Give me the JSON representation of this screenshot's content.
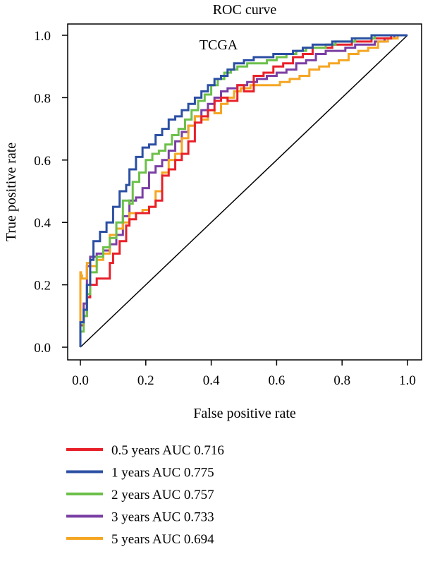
{
  "chart_data": {
    "type": "line",
    "title": "ROC curve",
    "annotation": "TCGA",
    "xlabel": "False positive rate",
    "ylabel": "True positive rate",
    "xlim": [
      0,
      1
    ],
    "ylim": [
      0,
      1
    ],
    "x_ticks": [
      "0.0",
      "0.2",
      "0.4",
      "0.6",
      "0.8",
      "1.0"
    ],
    "y_ticks": [
      "0.0",
      "0.2",
      "0.4",
      "0.6",
      "0.8",
      "1.0"
    ],
    "grid": false,
    "legend_position": "below plot",
    "reference_line": {
      "x": [
        0,
        1
      ],
      "y": [
        0,
        1
      ],
      "color": "#000000"
    },
    "series": [
      {
        "name": "0.5 years AUC 0.716",
        "color": "#e8202a",
        "x": [
          0,
          0.01,
          0.02,
          0.03,
          0.05,
          0.07,
          0.09,
          0.1,
          0.12,
          0.14,
          0.15,
          0.17,
          0.19,
          0.21,
          0.23,
          0.25,
          0.27,
          0.29,
          0.31,
          0.33,
          0.35,
          0.37,
          0.39,
          0.41,
          0.43,
          0.45,
          0.48,
          0.5,
          0.53,
          0.56,
          0.59,
          0.62,
          0.65,
          0.68,
          0.71,
          0.74,
          0.77,
          0.8,
          0.83,
          0.86,
          0.89,
          0.92,
          0.95,
          0.98,
          1.0
        ],
        "y": [
          0,
          0.07,
          0.1,
          0.16,
          0.2,
          0.22,
          0.22,
          0.27,
          0.3,
          0.34,
          0.39,
          0.41,
          0.43,
          0.43,
          0.45,
          0.47,
          0.55,
          0.57,
          0.6,
          0.62,
          0.66,
          0.72,
          0.74,
          0.76,
          0.79,
          0.8,
          0.79,
          0.84,
          0.82,
          0.87,
          0.88,
          0.9,
          0.91,
          0.93,
          0.94,
          0.96,
          0.96,
          0.97,
          0.97,
          0.98,
          0.98,
          0.99,
          0.99,
          1.0,
          1.0
        ]
      },
      {
        "name": "1 years AUC 0.775",
        "color": "#2b4fa3",
        "x": [
          0,
          0.01,
          0.02,
          0.03,
          0.04,
          0.06,
          0.08,
          0.09,
          0.1,
          0.12,
          0.14,
          0.15,
          0.17,
          0.19,
          0.21,
          0.23,
          0.25,
          0.27,
          0.29,
          0.31,
          0.33,
          0.35,
          0.37,
          0.39,
          0.41,
          0.43,
          0.45,
          0.47,
          0.5,
          0.53,
          0.56,
          0.59,
          0.62,
          0.65,
          0.68,
          0.71,
          0.74,
          0.77,
          0.8,
          0.83,
          0.86,
          0.89,
          0.92,
          0.95,
          1.0
        ],
        "y": [
          0,
          0.08,
          0.12,
          0.2,
          0.28,
          0.34,
          0.37,
          0.4,
          0.4,
          0.45,
          0.5,
          0.52,
          0.57,
          0.61,
          0.64,
          0.65,
          0.68,
          0.7,
          0.73,
          0.74,
          0.76,
          0.78,
          0.8,
          0.82,
          0.84,
          0.86,
          0.87,
          0.89,
          0.91,
          0.92,
          0.93,
          0.93,
          0.94,
          0.94,
          0.95,
          0.96,
          0.97,
          0.97,
          0.98,
          0.98,
          0.99,
          0.99,
          1.0,
          1.0,
          1.0
        ]
      },
      {
        "name": "2 years AUC 0.757",
        "color": "#6cc04a",
        "x": [
          0,
          0.01,
          0.02,
          0.03,
          0.05,
          0.07,
          0.09,
          0.11,
          0.13,
          0.15,
          0.16,
          0.18,
          0.2,
          0.22,
          0.24,
          0.26,
          0.28,
          0.3,
          0.32,
          0.34,
          0.36,
          0.38,
          0.4,
          0.42,
          0.44,
          0.46,
          0.48,
          0.51,
          0.54,
          0.57,
          0.6,
          0.63,
          0.66,
          0.69,
          0.72,
          0.75,
          0.78,
          0.81,
          0.84,
          0.87,
          0.9,
          0.93,
          0.96,
          1.0
        ],
        "y": [
          0,
          0.05,
          0.1,
          0.17,
          0.24,
          0.29,
          0.32,
          0.35,
          0.4,
          0.47,
          0.46,
          0.53,
          0.56,
          0.6,
          0.62,
          0.63,
          0.65,
          0.68,
          0.7,
          0.73,
          0.76,
          0.79,
          0.81,
          0.84,
          0.86,
          0.88,
          0.89,
          0.9,
          0.91,
          0.91,
          0.92,
          0.93,
          0.94,
          0.95,
          0.96,
          0.96,
          0.97,
          0.98,
          0.98,
          0.99,
          0.99,
          1.0,
          1.0,
          1.0
        ]
      },
      {
        "name": "3 years AUC 0.733",
        "color": "#7a3fa3",
        "x": [
          0,
          0.01,
          0.02,
          0.03,
          0.05,
          0.07,
          0.09,
          0.11,
          0.13,
          0.15,
          0.17,
          0.19,
          0.21,
          0.23,
          0.25,
          0.27,
          0.29,
          0.31,
          0.33,
          0.35,
          0.37,
          0.39,
          0.41,
          0.43,
          0.45,
          0.48,
          0.51,
          0.54,
          0.57,
          0.6,
          0.63,
          0.66,
          0.69,
          0.72,
          0.75,
          0.78,
          0.81,
          0.84,
          0.87,
          0.9,
          0.93,
          0.96,
          1.0
        ],
        "y": [
          0,
          0.08,
          0.14,
          0.26,
          0.29,
          0.3,
          0.31,
          0.33,
          0.36,
          0.42,
          0.47,
          0.48,
          0.51,
          0.56,
          0.58,
          0.6,
          0.63,
          0.66,
          0.69,
          0.71,
          0.74,
          0.76,
          0.78,
          0.8,
          0.82,
          0.83,
          0.84,
          0.85,
          0.86,
          0.87,
          0.88,
          0.89,
          0.91,
          0.92,
          0.94,
          0.95,
          0.95,
          0.96,
          0.97,
          0.97,
          0.98,
          0.99,
          1.0
        ]
      },
      {
        "name": "5 years AUC 0.694",
        "color": "#f5a623",
        "x": [
          0,
          0.002,
          0.005,
          0.02,
          0.03,
          0.05,
          0.07,
          0.09,
          0.11,
          0.13,
          0.15,
          0.17,
          0.19,
          0.21,
          0.23,
          0.25,
          0.27,
          0.29,
          0.31,
          0.33,
          0.35,
          0.37,
          0.39,
          0.41,
          0.43,
          0.45,
          0.47,
          0.49,
          0.52,
          0.55,
          0.58,
          0.61,
          0.64,
          0.67,
          0.7,
          0.73,
          0.76,
          0.79,
          0.82,
          0.85,
          0.88,
          0.91,
          0.94,
          0.97,
          1.0
        ],
        "y": [
          0,
          0.24,
          0.23,
          0.22,
          0.27,
          0.26,
          0.28,
          0.3,
          0.36,
          0.38,
          0.4,
          0.43,
          0.43,
          0.44,
          0.45,
          0.5,
          0.56,
          0.6,
          0.62,
          0.67,
          0.71,
          0.74,
          0.73,
          0.76,
          0.75,
          0.78,
          0.8,
          0.82,
          0.83,
          0.84,
          0.84,
          0.84,
          0.85,
          0.86,
          0.87,
          0.89,
          0.9,
          0.91,
          0.92,
          0.94,
          0.95,
          0.96,
          0.98,
          0.99,
          1.0
        ]
      }
    ]
  }
}
